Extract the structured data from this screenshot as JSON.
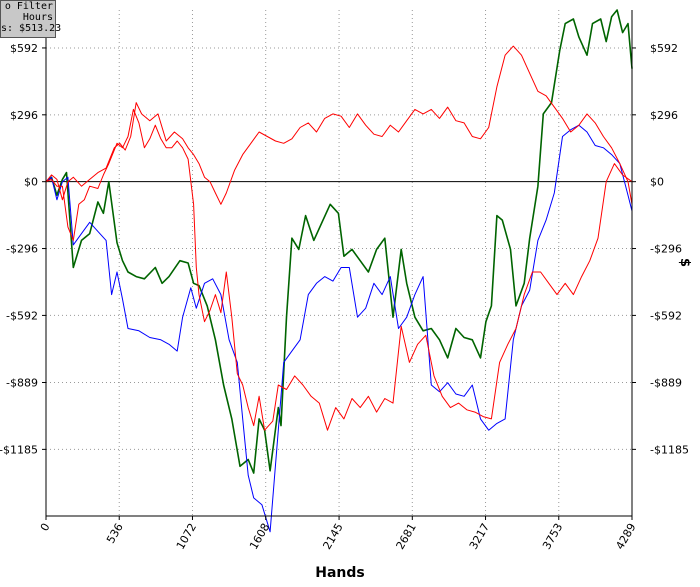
{
  "info_box": {
    "line1": "o Filter",
    "line2": "Hours",
    "line3": "s: $513.23"
  },
  "right_axis_title_fragment": "$",
  "colors": {
    "green": "#006400",
    "red": "#ff0000",
    "blue": "#0000ff",
    "zero_line": "#000000",
    "grid": "#9a9a9a"
  },
  "chart_data": {
    "type": "line",
    "xlabel": "Hands",
    "ylabel": "",
    "x_ticks": [
      0,
      536,
      1072,
      1608,
      2145,
      2681,
      3217,
      3753,
      4289
    ],
    "y_ticks": [
      {
        "value": 592,
        "label": "$592"
      },
      {
        "value": 296,
        "label": "$296"
      },
      {
        "value": 0,
        "label": "$0"
      },
      {
        "value": -296,
        "label": "-$296"
      },
      {
        "value": -592,
        "label": "-$592"
      },
      {
        "value": -889,
        "label": "-$889"
      },
      {
        "value": -1185,
        "label": "-$1185"
      }
    ],
    "xlim": [
      0,
      4289
    ],
    "ylim": [
      -1480,
      760
    ],
    "grid": true,
    "series": [
      {
        "color": "#006400",
        "x": [
          0,
          40,
          80,
          120,
          150,
          200,
          260,
          320,
          380,
          420,
          460,
          520,
          560,
          600,
          660,
          720,
          800,
          850,
          900,
          980,
          1040,
          1080,
          1120,
          1180,
          1240,
          1300,
          1360,
          1420,
          1480,
          1520,
          1560,
          1600,
          1640,
          1700,
          1720,
          1760,
          1800,
          1850,
          1900,
          1960,
          2020,
          2080,
          2140,
          2180,
          2240,
          2300,
          2360,
          2420,
          2480,
          2540,
          2600,
          2640,
          2700,
          2760,
          2820,
          2880,
          2940,
          3000,
          3060,
          3120,
          3180,
          3220,
          3260,
          3300,
          3340,
          3400,
          3440,
          3500,
          3540,
          3600,
          3640,
          3700,
          3760,
          3800,
          3860,
          3900,
          3960,
          4000,
          4060,
          4100,
          4140,
          4180,
          4220,
          4260,
          4289
        ],
        "values": [
          0,
          20,
          -60,
          10,
          40,
          -380,
          -260,
          -230,
          -90,
          -140,
          0,
          -270,
          -350,
          -400,
          -420,
          -430,
          -380,
          -450,
          -420,
          -350,
          -360,
          -450,
          -460,
          -550,
          -700,
          -900,
          -1050,
          -1260,
          -1230,
          -1290,
          -1050,
          -1100,
          -1280,
          -1000,
          -1080,
          -600,
          -250,
          -300,
          -150,
          -260,
          -180,
          -100,
          -140,
          -330,
          -300,
          -350,
          -400,
          -300,
          -250,
          -600,
          -300,
          -450,
          -600,
          -660,
          -650,
          -700,
          -780,
          -650,
          -690,
          -700,
          -780,
          -620,
          -550,
          -150,
          -170,
          -300,
          -550,
          -450,
          -250,
          -20,
          300,
          350,
          580,
          700,
          720,
          640,
          560,
          700,
          720,
          620,
          730,
          760,
          660,
          700,
          500
        ]
      },
      {
        "color": "#0000ff",
        "x": [
          0,
          40,
          80,
          120,
          160,
          200,
          260,
          320,
          380,
          440,
          480,
          520,
          560,
          600,
          680,
          760,
          840,
          900,
          960,
          1000,
          1060,
          1100,
          1160,
          1220,
          1280,
          1340,
          1400,
          1440,
          1480,
          1520,
          1580,
          1640,
          1700,
          1740,
          1800,
          1860,
          1920,
          1980,
          2040,
          2100,
          2160,
          2220,
          2280,
          2340,
          2400,
          2460,
          2520,
          2580,
          2640,
          2700,
          2760,
          2820,
          2880,
          2940,
          3000,
          3060,
          3120,
          3180,
          3240,
          3300,
          3360,
          3420,
          3480,
          3540,
          3600,
          3660,
          3720,
          3780,
          3840,
          3900,
          3960,
          4020,
          4080,
          4140,
          4200,
          4260,
          4289
        ],
        "values": [
          0,
          20,
          -80,
          0,
          20,
          -280,
          -230,
          -180,
          -220,
          -260,
          -500,
          -400,
          -520,
          -650,
          -660,
          -690,
          -700,
          -720,
          -750,
          -600,
          -470,
          -560,
          -450,
          -430,
          -500,
          -700,
          -800,
          -1050,
          -1300,
          -1400,
          -1430,
          -1550,
          -1100,
          -800,
          -750,
          -700,
          -500,
          -450,
          -420,
          -440,
          -380,
          -380,
          -600,
          -560,
          -450,
          -500,
          -420,
          -650,
          -600,
          -500,
          -420,
          -900,
          -930,
          -890,
          -940,
          -950,
          -900,
          -1050,
          -1100,
          -1070,
          -1050,
          -700,
          -550,
          -480,
          -260,
          -170,
          -50,
          200,
          230,
          250,
          220,
          160,
          150,
          120,
          80,
          -60,
          -130
        ]
      },
      {
        "color": "#ff0000",
        "x": [
          0,
          40,
          80,
          120,
          160,
          200,
          240,
          280,
          320,
          380,
          420,
          460,
          520,
          560,
          600,
          640,
          680,
          720,
          760,
          800,
          840,
          880,
          920,
          960,
          1000,
          1040,
          1080,
          1100,
          1120,
          1160,
          1200,
          1240,
          1280,
          1320,
          1360,
          1400,
          1440,
          1480,
          1520,
          1560,
          1600,
          1660,
          1700,
          1760,
          1820,
          1880,
          1940,
          2000,
          2060,
          2120,
          2180,
          2240,
          2300,
          2360,
          2420,
          2480,
          2540,
          2600,
          2660,
          2720,
          2780,
          2840,
          2900,
          2960,
          3020,
          3080,
          3140,
          3200,
          3260,
          3320,
          3380,
          3440,
          3500,
          3560,
          3620,
          3680,
          3740,
          3800,
          3860,
          3920,
          3980,
          4040,
          4100,
          4160,
          4220,
          4289
        ],
        "values": [
          0,
          10,
          -20,
          -20,
          -200,
          -260,
          -100,
          -80,
          -20,
          -30,
          30,
          80,
          170,
          150,
          200,
          320,
          260,
          150,
          190,
          250,
          190,
          150,
          150,
          180,
          150,
          100,
          -100,
          -380,
          -500,
          -620,
          -570,
          -500,
          -580,
          -400,
          -600,
          -850,
          -900,
          -1000,
          -1080,
          -950,
          -1100,
          -1060,
          -900,
          -920,
          -860,
          -900,
          -950,
          -980,
          -1100,
          -1000,
          -1050,
          -960,
          -1000,
          -950,
          -1020,
          -960,
          -980,
          -640,
          -800,
          -720,
          -680,
          -860,
          -950,
          -1000,
          -980,
          -1010,
          -1020,
          -1040,
          -1050,
          -800,
          -720,
          -650,
          -500,
          -400,
          -400,
          -450,
          -500,
          -450,
          -500,
          -420,
          -350,
          -250,
          0,
          80,
          30,
          0
        ]
      },
      {
        "color": "#ff0000",
        "x": [
          0,
          40,
          80,
          120,
          160,
          200,
          260,
          320,
          380,
          440,
          500,
          540,
          580,
          620,
          660,
          700,
          760,
          820,
          880,
          940,
          1000,
          1040,
          1080,
          1120,
          1160,
          1200,
          1240,
          1280,
          1320,
          1380,
          1440,
          1500,
          1560,
          1620,
          1680,
          1740,
          1800,
          1860,
          1920,
          1980,
          2040,
          2100,
          2160,
          2220,
          2280,
          2340,
          2400,
          2460,
          2520,
          2580,
          2640,
          2700,
          2760,
          2820,
          2880,
          2940,
          3000,
          3060,
          3120,
          3180,
          3240,
          3300,
          3360,
          3420,
          3480,
          3540,
          3600,
          3660,
          3720,
          3780,
          3840,
          3900,
          3960,
          4020,
          4080,
          4140,
          4200,
          4260,
          4289
        ],
        "values": [
          0,
          30,
          10,
          -80,
          0,
          20,
          -20,
          10,
          40,
          60,
          150,
          170,
          140,
          200,
          350,
          300,
          270,
          300,
          180,
          220,
          190,
          150,
          120,
          80,
          20,
          0,
          -50,
          -100,
          -50,
          50,
          120,
          170,
          220,
          200,
          180,
          170,
          190,
          240,
          260,
          220,
          280,
          300,
          290,
          240,
          300,
          250,
          210,
          200,
          250,
          220,
          270,
          320,
          300,
          320,
          280,
          330,
          270,
          260,
          200,
          190,
          240,
          420,
          560,
          600,
          560,
          480,
          400,
          380,
          330,
          280,
          220,
          250,
          300,
          260,
          200,
          150,
          80,
          0,
          -100
        ]
      }
    ]
  }
}
